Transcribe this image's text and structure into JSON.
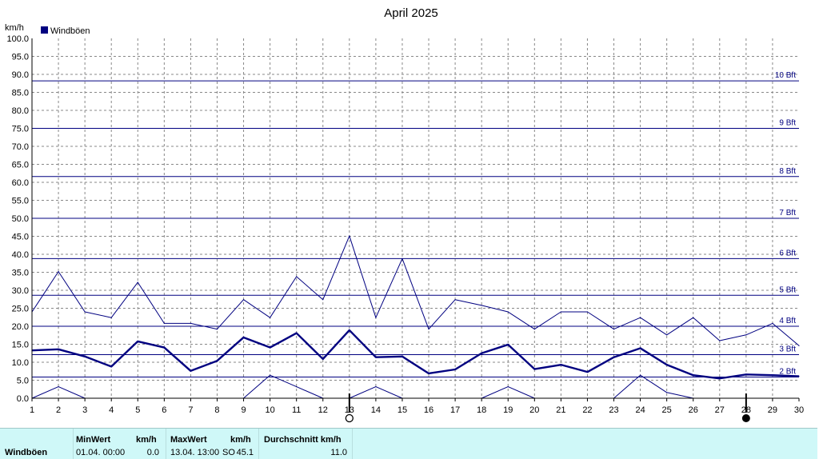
{
  "chart_data": {
    "type": "line",
    "title": "April 2025",
    "ylabel": "km/h",
    "legend": {
      "label": "Windböen",
      "color": "#000080",
      "placement": "top-left"
    },
    "xlim": [
      1,
      30
    ],
    "ylim": [
      0,
      100
    ],
    "grid": true,
    "x_ticks": [
      "1",
      "2",
      "3",
      "4",
      "5",
      "6",
      "7",
      "8",
      "9",
      "10",
      "11",
      "12",
      "13",
      "14",
      "15",
      "16",
      "17",
      "18",
      "19",
      "20",
      "21",
      "22",
      "23",
      "24",
      "25",
      "26",
      "27",
      "28",
      "29",
      "30"
    ],
    "y_ticks": [
      "0.0",
      "5.0",
      "10.0",
      "15.0",
      "20.0",
      "25.0",
      "30.0",
      "35.0",
      "40.0",
      "45.0",
      "50.0",
      "55.0",
      "60.0",
      "65.0",
      "70.0",
      "75.0",
      "80.0",
      "85.0",
      "90.0",
      "95.0",
      "100.0"
    ],
    "beaufort_lines": [
      {
        "label": "2 Bft",
        "value": 5.9
      },
      {
        "label": "3 Bft",
        "value": 12.1
      },
      {
        "label": "4 Bft",
        "value": 20.0
      },
      {
        "label": "5 Bft",
        "value": 28.6
      },
      {
        "label": "6 Bft",
        "value": 38.8
      },
      {
        "label": "7 Bft",
        "value": 50.0
      },
      {
        "label": "8 Bft",
        "value": 61.6
      },
      {
        "label": "9 Bft",
        "value": 75.0
      },
      {
        "label": "10 Bft",
        "value": 88.2
      }
    ],
    "series": [
      {
        "role": "max",
        "color": "#000080",
        "x": [
          1,
          2,
          3,
          4,
          5,
          6,
          7,
          8,
          9,
          10,
          11,
          12,
          13,
          14,
          15,
          16,
          17,
          18,
          19,
          20,
          21,
          22,
          23,
          24,
          25,
          26,
          27,
          28,
          29,
          30
        ],
        "values": [
          24,
          35.2,
          24,
          22.4,
          32.2,
          20.8,
          20.8,
          19.2,
          27.4,
          22.4,
          33.8,
          27.4,
          45.1,
          22.4,
          38.8,
          19.2,
          27.4,
          25.8,
          24,
          19.2,
          24,
          24,
          19.2,
          22.4,
          17.6,
          22.4,
          16,
          17.6,
          20.8,
          14.6
        ]
      },
      {
        "role": "mean",
        "color": "#000080",
        "x": [
          1,
          2,
          3,
          4,
          5,
          6,
          7,
          8,
          9,
          10,
          11,
          12,
          13,
          14,
          15,
          16,
          17,
          18,
          19,
          20,
          21,
          22,
          23,
          24,
          25,
          26,
          27,
          28,
          29,
          30
        ],
        "values": [
          13.3,
          13.6,
          11.6,
          8.8,
          15.8,
          14.1,
          7.6,
          10.4,
          16.9,
          14.1,
          18.1,
          10.9,
          18.9,
          11.4,
          11.6,
          6.9,
          8,
          12.5,
          14.9,
          8.1,
          9.3,
          7.3,
          11.4,
          13.9,
          9.3,
          6.4,
          5.5,
          6.6,
          6.4,
          6.1
        ]
      },
      {
        "role": "min",
        "color": "#000080",
        "x": [
          1,
          2,
          3,
          4,
          5,
          6,
          7,
          8,
          9,
          10,
          11,
          12,
          13,
          14,
          15,
          16,
          17,
          18,
          19,
          20,
          21,
          22,
          23,
          24,
          25,
          26,
          27,
          28,
          29,
          30
        ],
        "values": [
          0,
          3.2,
          0,
          null,
          null,
          null,
          null,
          null,
          0,
          6.4,
          3.2,
          0,
          0,
          3.2,
          0,
          null,
          null,
          0,
          3.2,
          0,
          null,
          null,
          0,
          6.4,
          1.6,
          0,
          null,
          null,
          null,
          null
        ]
      }
    ],
    "moon_phases": [
      {
        "day": 13,
        "phase": "full"
      },
      {
        "day": 28,
        "phase": "new"
      }
    ]
  },
  "stats": {
    "row_label": "Windböen",
    "min_header": "MinWert",
    "min_unit": "km/h",
    "min_time": "01.04.  00:00",
    "min_value": "0.0",
    "max_header": "MaxWert",
    "max_unit": "km/h",
    "max_time": "13.04.  13:00",
    "max_dir": "SO",
    "max_value": "45.1",
    "avg_header": "Durchschnitt km/h",
    "avg_value": "11.0"
  }
}
